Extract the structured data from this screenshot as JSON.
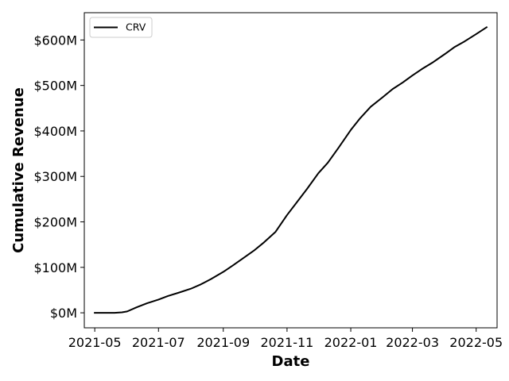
{
  "chart_data": {
    "type": "line",
    "xlabel": "Date",
    "ylabel": "Cumulative Revenue",
    "x_axis": "date",
    "xlim": [
      "2021-04-21",
      "2022-05-21"
    ],
    "ylim": [
      -33000000,
      660000000
    ],
    "x_ticks": [
      "2021-05",
      "2021-07",
      "2021-09",
      "2021-11",
      "2022-01",
      "2022-03",
      "2022-05"
    ],
    "x_tick_dates": [
      "2021-05-01",
      "2021-07-01",
      "2021-09-01",
      "2021-11-01",
      "2022-01-01",
      "2022-03-01",
      "2022-05-01"
    ],
    "y_ticks": [
      0,
      100000000,
      200000000,
      300000000,
      400000000,
      500000000,
      600000000
    ],
    "y_tick_labels": [
      "$0M",
      "$100M",
      "$200M",
      "$300M",
      "$400M",
      "$500M",
      "$600M"
    ],
    "grid": false,
    "legend": {
      "position": "top-left"
    },
    "series": [
      {
        "name": "CRV",
        "color": "#000000",
        "x": [
          "2021-05-01",
          "2021-05-10",
          "2021-05-20",
          "2021-05-27",
          "2021-06-01",
          "2021-06-10",
          "2021-06-20",
          "2021-07-01",
          "2021-07-10",
          "2021-07-20",
          "2021-08-01",
          "2021-08-10",
          "2021-08-20",
          "2021-09-01",
          "2021-09-10",
          "2021-09-20",
          "2021-10-01",
          "2021-10-10",
          "2021-10-21",
          "2021-11-01",
          "2021-11-10",
          "2021-11-20",
          "2021-12-01",
          "2021-12-10",
          "2021-12-20",
          "2022-01-01",
          "2022-01-10",
          "2022-01-20",
          "2022-02-01",
          "2022-02-10",
          "2022-02-20",
          "2022-03-01",
          "2022-03-10",
          "2022-03-20",
          "2022-04-01",
          "2022-04-10",
          "2022-04-20",
          "2022-05-01",
          "2022-05-11"
        ],
        "y": [
          0,
          0,
          0,
          1000000,
          3000000,
          12000000,
          21000000,
          29000000,
          37000000,
          44000000,
          53000000,
          62000000,
          74000000,
          90000000,
          104000000,
          120000000,
          138000000,
          155000000,
          178000000,
          215000000,
          242000000,
          272000000,
          307000000,
          330000000,
          362000000,
          402000000,
          428000000,
          453000000,
          475000000,
          492000000,
          507000000,
          522000000,
          536000000,
          550000000,
          569000000,
          584000000,
          597000000,
          613000000,
          628000000
        ]
      }
    ]
  }
}
